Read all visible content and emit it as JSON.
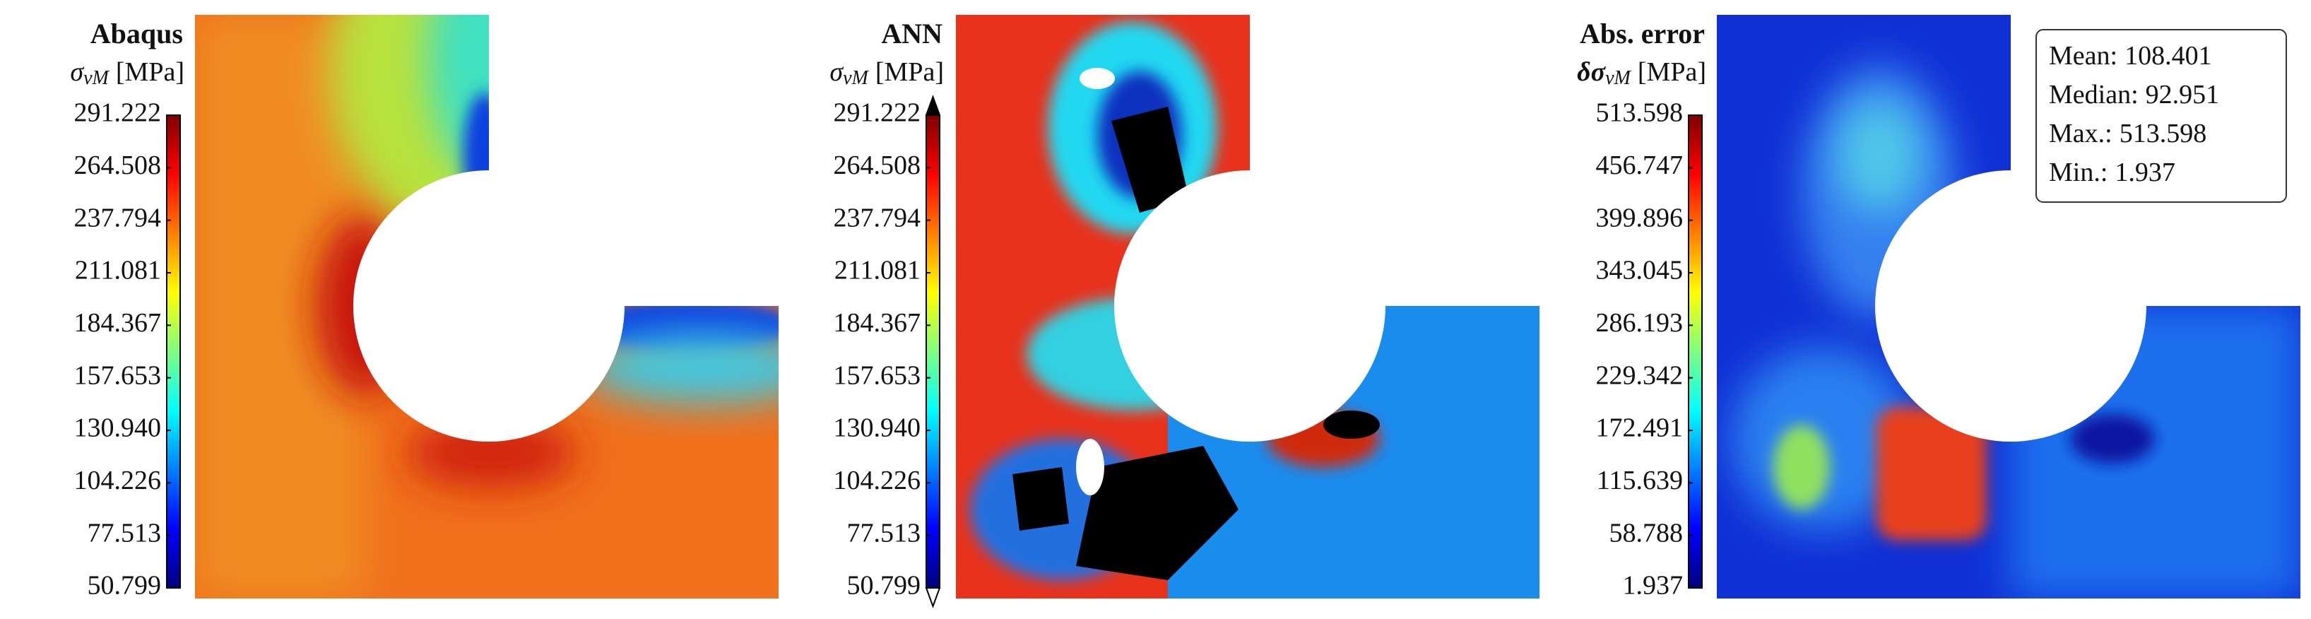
{
  "chart_data": [
    {
      "type": "heatmap",
      "title": "Abaqus",
      "colormap": "jet",
      "colorbar_label": {
        "symbol": "σ",
        "subscript": "vM",
        "unit": "[MPa]"
      },
      "zlim": [
        50.799,
        291.222
      ],
      "zticks": [
        50.799,
        77.513,
        104.226,
        {
          "value": 130.94,
          "label": "130.940"
        },
        157.653,
        184.367,
        211.081,
        237.794,
        264.508,
        291.222
      ]
    },
    {
      "type": "heatmap",
      "title": "ANN",
      "colormap": "jet",
      "extend": "both",
      "colorbar_label": {
        "symbol": "σ",
        "subscript": "vM",
        "unit": "[MPa]"
      },
      "zlim": [
        50.799,
        291.222
      ],
      "zticks": [
        50.799,
        77.513,
        104.226,
        {
          "value": 130.94,
          "label": "130.940"
        },
        157.653,
        184.367,
        211.081,
        237.794,
        264.508,
        291.222
      ]
    },
    {
      "type": "heatmap",
      "title": "Abs. error",
      "colormap": "jet",
      "colorbar_label": {
        "symbol": "δσ",
        "subscript": "vM",
        "unit": "[MPa]"
      },
      "zlim": [
        1.937,
        513.598
      ],
      "zticks": [
        1.937,
        58.788,
        115.639,
        172.491,
        229.342,
        286.193,
        343.045,
        399.896,
        456.747,
        513.598
      ],
      "stats": [
        {
          "label": "Mean:",
          "value": 108.401
        },
        {
          "label": "Median:",
          "value": 92.951
        },
        {
          "label": "Max.:",
          "value": 513.598
        },
        {
          "label": "Min.:",
          "value": 1.937
        }
      ]
    }
  ]
}
